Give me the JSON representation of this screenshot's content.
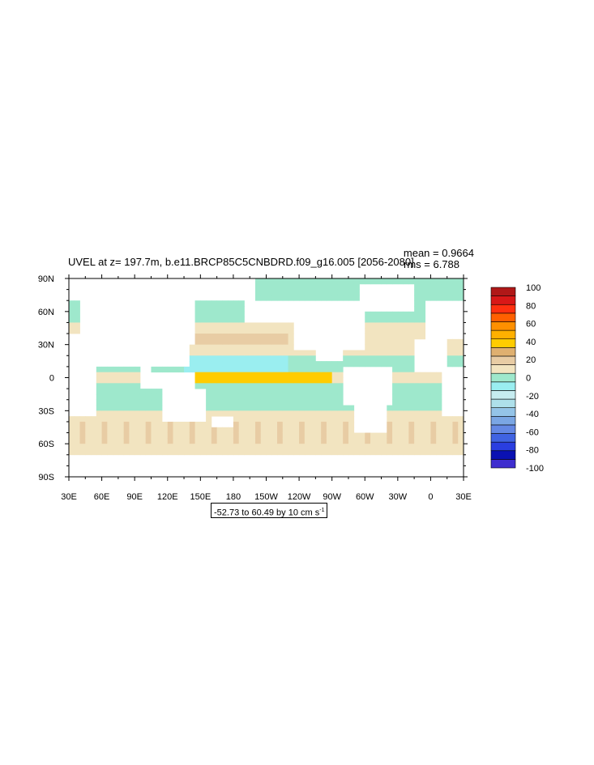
{
  "chart_data": {
    "type": "heatmap",
    "title": "UVEL at z= 197.7m, b.e11.BRCP85C5CNBDRD.f09_g16.005 [2056-2080]",
    "stats": {
      "mean_text": "mean = 0.9664",
      "rms_text": "rms = 6.788",
      "mean": 0.9664,
      "rms": 6.788
    },
    "x_ticks": [
      "30E",
      "60E",
      "90E",
      "120E",
      "150E",
      "180",
      "150W",
      "120W",
      "90W",
      "60W",
      "30W",
      "0",
      "30E"
    ],
    "y_ticks": [
      "90N",
      "60N",
      "30N",
      "0",
      "30S",
      "60S",
      "90S"
    ],
    "xlim_deg_east": [
      30,
      390
    ],
    "ylim_deg_north": [
      -90,
      90
    ],
    "colorbar": {
      "labels": [
        "100",
        "80",
        "60",
        "40",
        "20",
        "0",
        "-20",
        "-40",
        "-60",
        "-80",
        "-100"
      ],
      "levels": [
        -100,
        -90,
        -80,
        -70,
        -60,
        -50,
        -40,
        -30,
        -20,
        -10,
        0,
        10,
        20,
        30,
        40,
        50,
        60,
        70,
        80,
        90,
        100
      ],
      "colors": [
        "#3f2ecf",
        "#0a11b3",
        "#2a3ee0",
        "#4063e2",
        "#6488e4",
        "#7aa6e4",
        "#94c4e8",
        "#aee0ea",
        "#c6ecf0",
        "#9aeef0",
        "#9ee8cc",
        "#f2e4c0",
        "#e8cca4",
        "#dfb070",
        "#ffcc00",
        "#ffb000",
        "#ff9000",
        "#ff6000",
        "#ff3010",
        "#d81818",
        "#b01818"
      ]
    },
    "range_label": "-52.73 to 60.49 by 10 cm s",
    "range_units_exp": "-1",
    "range_min": -52.73,
    "range_max": 60.49,
    "contour_interval": 10
  }
}
